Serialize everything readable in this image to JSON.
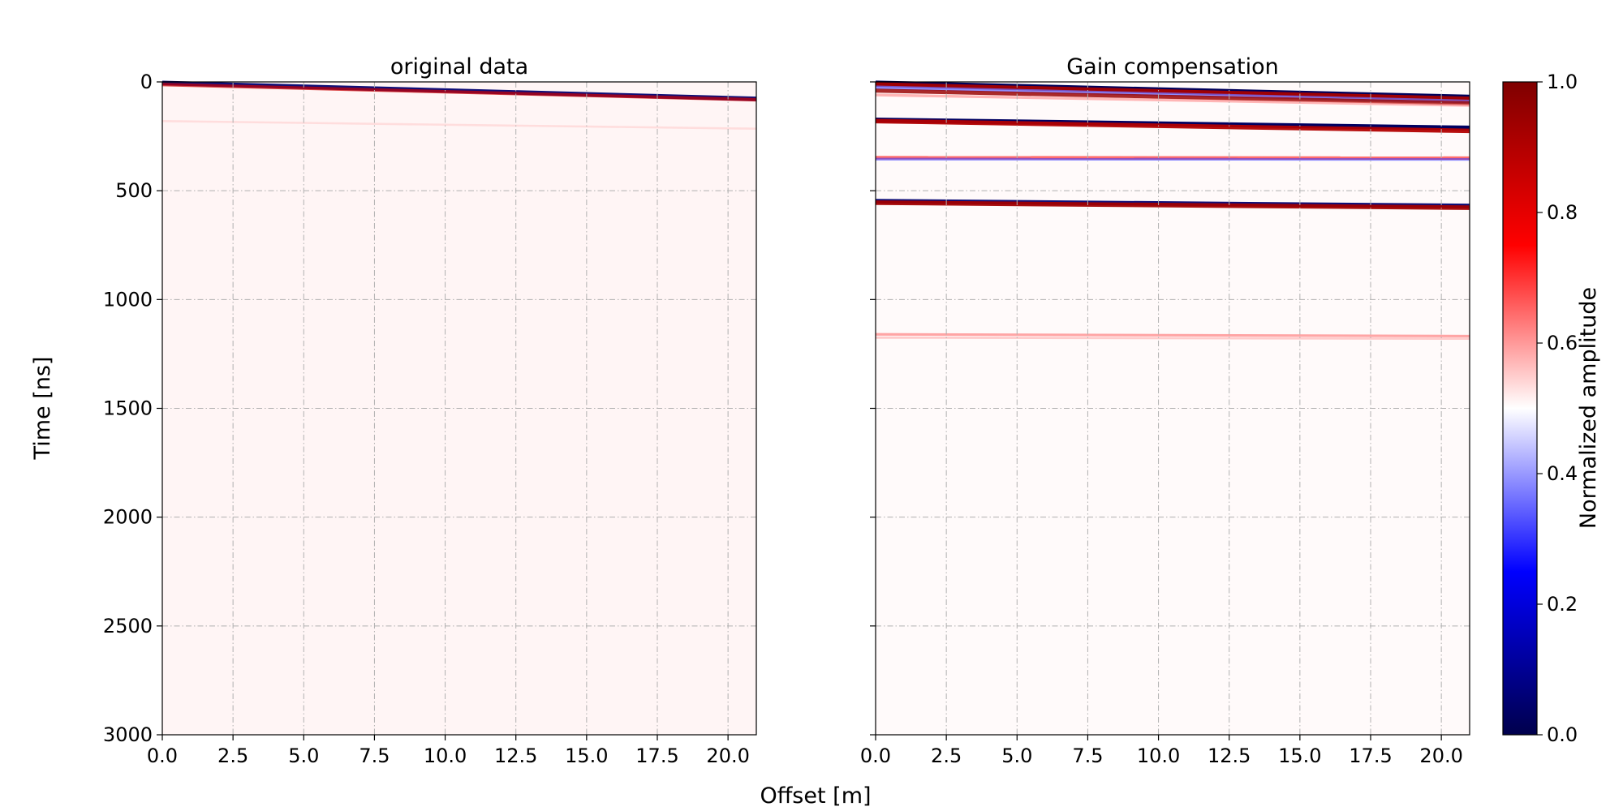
{
  "figure": {
    "xlabel": "Offset [m]",
    "ylabel": "Time [ns]"
  },
  "chart_data": [
    {
      "type": "heatmap",
      "title": "original data",
      "xlabel": "Offset [m]",
      "ylabel": "Time [ns]",
      "xlim": [
        0,
        21
      ],
      "ylim": [
        3000,
        0
      ],
      "y_inverted": true,
      "xticks": [
        "0.0",
        "2.5",
        "5.0",
        "7.5",
        "10.0",
        "12.5",
        "15.0",
        "17.5",
        "20.0"
      ],
      "xtick_values": [
        0,
        2.5,
        5,
        7.5,
        10,
        12.5,
        15,
        17.5,
        20
      ],
      "yticks": [
        "0",
        "500",
        "1000",
        "1500",
        "2000",
        "2500",
        "3000"
      ],
      "ytick_values": [
        0,
        500,
        1000,
        1500,
        2000,
        2500,
        3000
      ],
      "grid": true,
      "background_value": 0.51,
      "events": [
        {
          "t0": 5,
          "t1": 78,
          "value": 0.05,
          "strength": 0.9
        },
        {
          "t0": 12,
          "t1": 82,
          "value": 0.85,
          "strength": 0.55
        },
        {
          "t0": 180,
          "t1": 215,
          "value": 0.56,
          "strength": 0.15
        }
      ]
    },
    {
      "type": "heatmap",
      "title": "Gain compensation",
      "xlabel": "Offset [m]",
      "xlim": [
        0,
        21
      ],
      "ylim": [
        3000,
        0
      ],
      "y_inverted": true,
      "xticks": [
        "0.0",
        "2.5",
        "5.0",
        "7.5",
        "10.0",
        "12.5",
        "15.0",
        "17.5",
        "20.0"
      ],
      "xtick_values": [
        0,
        2.5,
        5,
        7.5,
        10,
        12.5,
        15,
        17.5,
        20
      ],
      "yticks_shown": false,
      "grid": true,
      "background_value": 0.505,
      "events": [
        {
          "t0": 5,
          "t1": 70,
          "value": 0.02,
          "strength": 1.0
        },
        {
          "t0": 12,
          "t1": 78,
          "value": 0.92,
          "strength": 0.9
        },
        {
          "t0": 25,
          "t1": 90,
          "value": 0.35,
          "strength": 0.6
        },
        {
          "t0": 40,
          "t1": 98,
          "value": 0.95,
          "strength": 0.75
        },
        {
          "t0": 60,
          "t1": 108,
          "value": 0.62,
          "strength": 0.35
        },
        {
          "t0": 175,
          "t1": 212,
          "value": 0.03,
          "strength": 1.0
        },
        {
          "t0": 180,
          "t1": 225,
          "value": 0.9,
          "strength": 0.9
        },
        {
          "t0": 348,
          "t1": 350,
          "value": 0.7,
          "strength": 0.55
        },
        {
          "t0": 355,
          "t1": 356,
          "value": 0.3,
          "strength": 0.3
        },
        {
          "t0": 548,
          "t1": 570,
          "value": 0.05,
          "strength": 0.9
        },
        {
          "t0": 555,
          "t1": 578,
          "value": 0.93,
          "strength": 0.9
        },
        {
          "t0": 1160,
          "t1": 1168,
          "value": 0.66,
          "strength": 0.3
        },
        {
          "t0": 1175,
          "t1": 1180,
          "value": 0.6,
          "strength": 0.2
        }
      ]
    }
  ],
  "colorbar": {
    "label": "Normalized amplitude",
    "colormap": "seismic",
    "colors": [
      "#00004c",
      "#0000ff",
      "#ffffff",
      "#ff0000",
      "#7f0000"
    ],
    "range": [
      0,
      1
    ],
    "ticks": [
      "0.0",
      "0.2",
      "0.4",
      "0.6",
      "0.8",
      "1.0"
    ],
    "tick_values": [
      0,
      0.2,
      0.4,
      0.6,
      0.8,
      1.0
    ]
  }
}
